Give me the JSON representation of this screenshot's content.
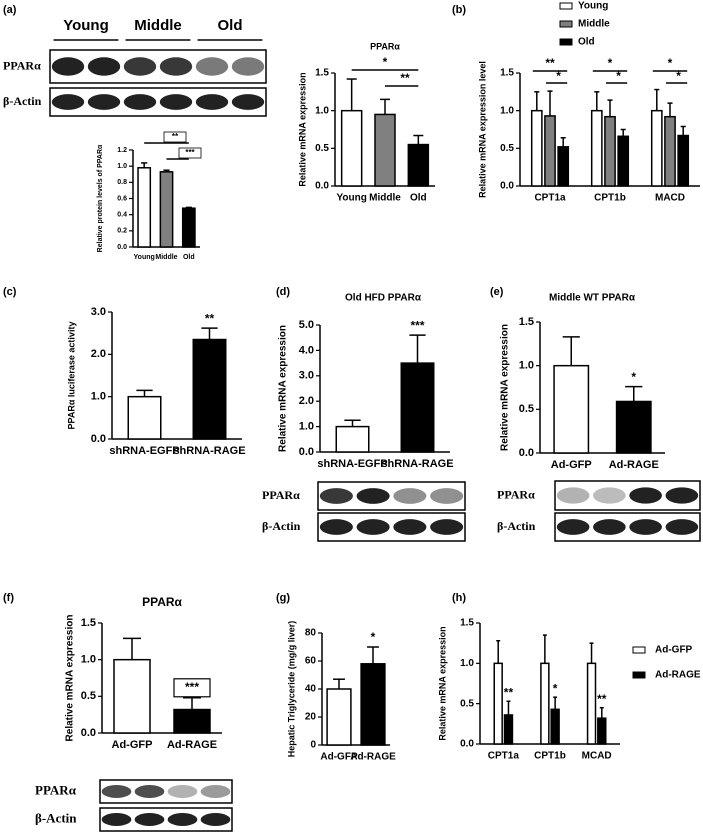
{
  "panel_labels": [
    "(a)",
    "(b)",
    "(c)",
    "(d)",
    "(e)",
    "(f)",
    "(g)",
    "(h)"
  ],
  "blots": [
    {
      "groups": [
        "Young",
        "Middle",
        "Old"
      ],
      "rows": [
        "PPARα",
        "β-Actin"
      ]
    },
    {
      "rows": [
        "PPARα",
        "β-Actin"
      ]
    },
    {
      "rows": [
        "PPARα",
        "β-Actin"
      ]
    },
    {
      "rows": [
        "PPARα",
        "β-Actin"
      ]
    }
  ],
  "chart_data": [
    {
      "type": "bar",
      "y_label": "Relative protein levels of PPARα",
      "categories": [
        "Young",
        "Middle",
        "Old"
      ],
      "values": [
        0.98,
        0.93,
        0.48
      ],
      "errors": [
        0.06,
        0.02,
        0.01
      ],
      "colors": [
        "#ffffff",
        "#808080",
        "#000000"
      ],
      "ylim": [
        0,
        1.2
      ],
      "yticks": [
        {
          "value": 0,
          "label": "0.0"
        },
        {
          "value": 0.2,
          "label": "0.2"
        },
        {
          "value": 0.4,
          "label": "0.4"
        },
        {
          "value": 0.6,
          "label": "0.6"
        },
        {
          "value": 0.8,
          "label": "0.8"
        },
        {
          "value": 1,
          "label": "1.0"
        },
        {
          "value": 1.2,
          "label": "1.2"
        }
      ],
      "annotations": [
        "**",
        "***"
      ]
    },
    {
      "type": "bar",
      "title": "PPARα",
      "y_label": "Relative mRNA expression",
      "categories": [
        "Young",
        "Middle",
        "Old"
      ],
      "values": [
        1.0,
        0.95,
        0.55
      ],
      "errors": [
        0.42,
        0.2,
        0.12
      ],
      "colors": [
        "#ffffff",
        "#808080",
        "#000000"
      ],
      "ylim": [
        0,
        1.5
      ],
      "yticks": [
        {
          "value": 0,
          "label": "0.0"
        },
        {
          "value": 0.5,
          "label": "0.5"
        },
        {
          "value": 1,
          "label": "1.0"
        },
        {
          "value": 1.5,
          "label": "1.5"
        }
      ],
      "annotations": [
        "*",
        "**"
      ]
    },
    {
      "type": "bar",
      "y_label": "Relative mRNA expression level",
      "categories": [
        "CPT1a",
        "CPT1b",
        "MACD"
      ],
      "series": [
        {
          "name": "Young",
          "color": "#ffffff",
          "values": [
            1.0,
            1.0,
            1.0
          ],
          "errors": [
            0.25,
            0.25,
            0.28
          ]
        },
        {
          "name": "Middle",
          "color": "#808080",
          "values": [
            0.93,
            0.92,
            0.92
          ],
          "errors": [
            0.33,
            0.22,
            0.18
          ]
        },
        {
          "name": "Old",
          "color": "#000000",
          "values": [
            0.52,
            0.66,
            0.67
          ],
          "errors": [
            0.12,
            0.09,
            0.12
          ]
        }
      ],
      "ylim": [
        0,
        1.5
      ],
      "yticks": [
        {
          "value": 0,
          "label": "0.0"
        },
        {
          "value": 0.5,
          "label": "0.5"
        },
        {
          "value": 1,
          "label": "1.0"
        },
        {
          "value": 1.5,
          "label": "1.5"
        }
      ],
      "annotations": [
        "**",
        "*",
        "*",
        "*",
        "*",
        "*"
      ]
    },
    {
      "type": "bar",
      "y_label": "PPARα luciferase activity",
      "categories": [
        "shRNA-EGFP",
        "shRNA-RAGE"
      ],
      "values": [
        1.0,
        2.35
      ],
      "errors": [
        0.15,
        0.27
      ],
      "colors": [
        "#ffffff",
        "#000000"
      ],
      "ylim": [
        0,
        3
      ],
      "yticks": [
        {
          "value": 0,
          "label": "0.0"
        },
        {
          "value": 1,
          "label": "1.0"
        },
        {
          "value": 2,
          "label": "2.0"
        },
        {
          "value": 3,
          "label": "3.0"
        }
      ],
      "annotations": [
        "**"
      ]
    },
    {
      "type": "bar",
      "title": "Old HFD PPARα",
      "y_label": "Relative mRNA expression",
      "categories": [
        "shRNA-EGFP",
        "shRNA-RAGE"
      ],
      "values": [
        1.0,
        3.5
      ],
      "errors": [
        0.25,
        1.1
      ],
      "colors": [
        "#ffffff",
        "#000000"
      ],
      "ylim": [
        0,
        5
      ],
      "yticks": [
        {
          "value": 0,
          "label": "0.0"
        },
        {
          "value": 1,
          "label": "1.0"
        },
        {
          "value": 2,
          "label": "2.0"
        },
        {
          "value": 3,
          "label": "3.0"
        },
        {
          "value": 4,
          "label": "4.0"
        },
        {
          "value": 5,
          "label": "5.0"
        }
      ],
      "annotations": [
        "***"
      ]
    },
    {
      "type": "bar",
      "title": "Middle WT PPARα",
      "y_label": "Relative mRNA expression",
      "categories": [
        "Ad-GFP",
        "Ad-RAGE"
      ],
      "values": [
        1.0,
        0.59
      ],
      "errors": [
        0.33,
        0.17
      ],
      "colors": [
        "#ffffff",
        "#000000"
      ],
      "ylim": [
        0,
        1.5
      ],
      "yticks": [
        {
          "value": 0,
          "label": "0.0"
        },
        {
          "value": 0.5,
          "label": "0.5"
        },
        {
          "value": 1,
          "label": "1.0"
        },
        {
          "value": 1.5,
          "label": "1.5"
        }
      ],
      "annotations": [
        "*"
      ]
    },
    {
      "type": "bar",
      "title": "PPARα",
      "y_label": "Relative mRNA expression",
      "categories": [
        "Ad-GFP",
        "Ad-RAGE"
      ],
      "values": [
        1.0,
        0.32
      ],
      "errors": [
        0.29,
        0.16
      ],
      "colors": [
        "#ffffff",
        "#000000"
      ],
      "ylim": [
        0,
        1.5
      ],
      "yticks": [
        {
          "value": 0,
          "label": "0.0"
        },
        {
          "value": 0.5,
          "label": "0.5"
        },
        {
          "value": 1,
          "label": "1.0"
        },
        {
          "value": 1.5,
          "label": "1.5"
        }
      ],
      "annotations": [
        "***"
      ]
    },
    {
      "type": "bar",
      "y_label": "Hepatic Triglyceride (mg/g liver)",
      "categories": [
        "Ad-GFP",
        "Ad-RAGE"
      ],
      "values": [
        40,
        58
      ],
      "errors": [
        7,
        12
      ],
      "colors": [
        "#ffffff",
        "#000000"
      ],
      "ylim": [
        0,
        80
      ],
      "yticks": [
        0,
        20,
        40,
        60,
        80
      ],
      "annotations": [
        "*"
      ]
    },
    {
      "type": "bar",
      "y_label": "Relative mRNA expression",
      "categories": [
        "CPT1a",
        "CPT1b",
        "MCAD"
      ],
      "series": [
        {
          "name": "Ad-GFP",
          "color": "#ffffff",
          "values": [
            1.0,
            1.0,
            1.0
          ],
          "errors": [
            0.28,
            0.35,
            0.25
          ]
        },
        {
          "name": "Ad-RAGE",
          "color": "#000000",
          "values": [
            0.36,
            0.43,
            0.32
          ],
          "errors": [
            0.17,
            0.15,
            0.13
          ]
        }
      ],
      "ylim": [
        0,
        1.5
      ],
      "yticks": [
        {
          "value": 0,
          "label": "0.0"
        },
        {
          "value": 0.5,
          "label": "0.5"
        },
        {
          "value": 1,
          "label": "1.0"
        },
        {
          "value": 1.5,
          "label": "1.5"
        }
      ],
      "annotations": [
        "**",
        "*",
        "**"
      ]
    }
  ]
}
